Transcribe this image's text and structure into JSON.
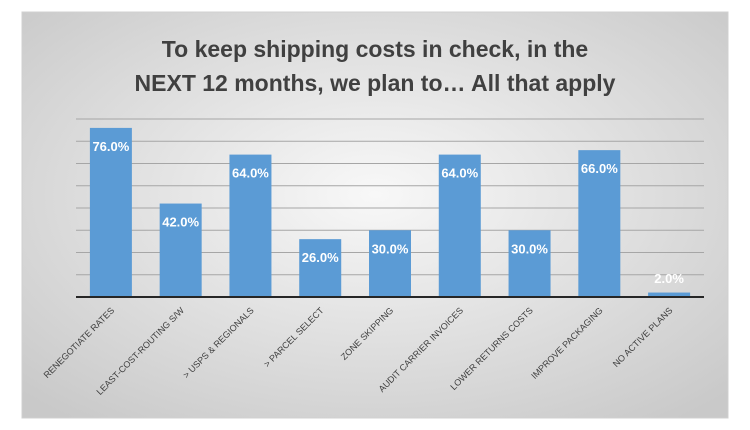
{
  "chart_data": {
    "type": "bar",
    "title": "To keep shipping costs in check, in the NEXT 12 months, we plan to… All that apply",
    "categories": [
      "RENEGOTIATE RATES",
      "LEAST-COST-ROUTING S/W",
      "> USPS & REGIONALS",
      "> PARCEL SELECT",
      "ZONE SKIPPING",
      "AUDIT CARRIER INVOICES",
      "LOWER RETURNS COSTS",
      "IMPROVE PACKAGING",
      "NO ACTIVE PLANS"
    ],
    "values": [
      76,
      42,
      64,
      26,
      30,
      64,
      30,
      66,
      2
    ],
    "value_labels": [
      "76.0%",
      "42.0%",
      "64.0%",
      "26.0%",
      "30.0%",
      "64.0%",
      "30.0%",
      "66.0%",
      "2.0%"
    ],
    "color": "#5b9bd5",
    "ylim": [
      0,
      80
    ],
    "yticks": [
      0,
      10,
      20,
      30,
      40,
      50,
      60,
      70,
      80
    ],
    "grid": true
  }
}
